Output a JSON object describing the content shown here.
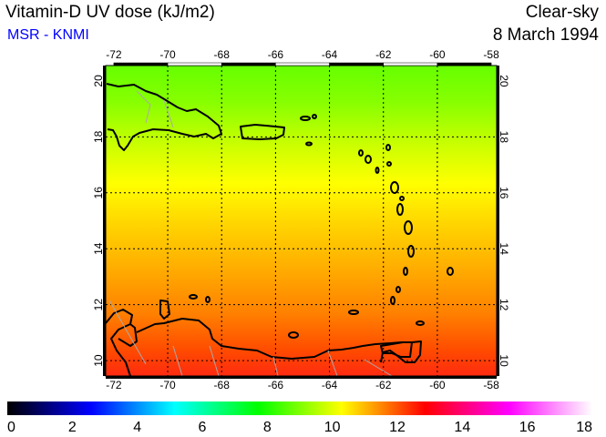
{
  "header": {
    "title": "Vitamin-D UV dose (kJ/m2)",
    "source": "MSR - KNMI",
    "condition": "Clear-sky",
    "date": "8 March 1994"
  },
  "map": {
    "region": "Caribbean",
    "lon_ticks": [
      "-72",
      "-70",
      "-68",
      "-66",
      "-64",
      "-62",
      "-60",
      "-58"
    ],
    "lat_ticks": [
      "20",
      "18",
      "16",
      "14",
      "12",
      "10"
    ],
    "lon_values": [
      -72,
      -70,
      -68,
      -66,
      -64,
      -62,
      -60,
      -58
    ],
    "lat_values": [
      20,
      18,
      16,
      14,
      12,
      10
    ],
    "lon_range": [
      -72.3,
      -57.8
    ],
    "lat_range": [
      9.45,
      20.55
    ]
  },
  "colorbar": {
    "labels": [
      "0",
      "2",
      "4",
      "6",
      "8",
      "10",
      "12",
      "14",
      "16",
      "18"
    ],
    "range": [
      0,
      18
    ],
    "stops": [
      "#000000",
      "#000080",
      "#0000ff",
      "#0080ff",
      "#00ffff",
      "#00ff80",
      "#00ff00",
      "#80ff00",
      "#ffff00",
      "#ff8000",
      "#ff0000",
      "#ff0080",
      "#ff00ff",
      "#ff80ff",
      "#ffffff"
    ]
  }
}
